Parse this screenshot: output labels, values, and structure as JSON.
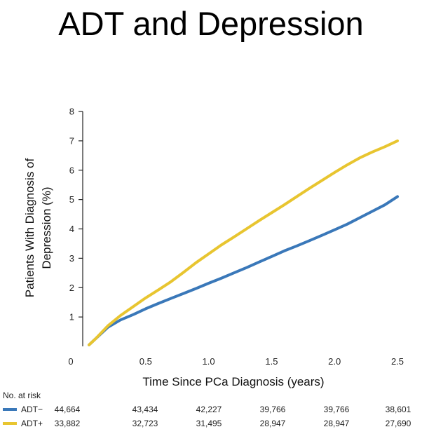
{
  "title": "ADT and Depression",
  "chart_data": {
    "type": "line",
    "xlabel": "Time Since PCa Diagnosis (years)",
    "ylabel": [
      "Patients With Diagnosis of",
      "Depression (%)"
    ],
    "xlim": [
      0,
      2.5
    ],
    "ylim": [
      0,
      8
    ],
    "x_ticks": [
      0,
      0.5,
      1.0,
      1.5,
      2.0,
      2.5
    ],
    "x_tick_labels": [
      "0",
      "0.5",
      "1.0",
      "1.5",
      "2.0",
      "2.5"
    ],
    "y_ticks": [
      1,
      2,
      3,
      4,
      5,
      6,
      7,
      8
    ],
    "y_tick_labels": [
      "1",
      "2",
      "3",
      "4",
      "5",
      "6",
      "7",
      "8"
    ],
    "grid": false,
    "series": [
      {
        "name": "ADT−",
        "color": "#3a78b9",
        "x": [
          0.05,
          0.1,
          0.2,
          0.3,
          0.4,
          0.5,
          0.6,
          0.7,
          0.8,
          0.9,
          1.0,
          1.1,
          1.2,
          1.3,
          1.4,
          1.5,
          1.6,
          1.7,
          1.8,
          1.9,
          2.0,
          2.1,
          2.2,
          2.3,
          2.4,
          2.5
        ],
        "y": [
          0.05,
          0.25,
          0.65,
          0.9,
          1.08,
          1.28,
          1.46,
          1.63,
          1.8,
          1.97,
          2.15,
          2.32,
          2.5,
          2.68,
          2.87,
          3.06,
          3.25,
          3.42,
          3.6,
          3.78,
          3.97,
          4.16,
          4.38,
          4.6,
          4.82,
          5.1
        ]
      },
      {
        "name": "ADT+",
        "color": "#e8c530",
        "x": [
          0.05,
          0.1,
          0.2,
          0.3,
          0.4,
          0.5,
          0.6,
          0.7,
          0.8,
          0.9,
          1.0,
          1.1,
          1.2,
          1.3,
          1.4,
          1.5,
          1.6,
          1.7,
          1.8,
          1.9,
          2.0,
          2.1,
          2.2,
          2.3,
          2.4,
          2.5
        ],
        "y": [
          0.05,
          0.25,
          0.7,
          1.05,
          1.35,
          1.65,
          1.92,
          2.2,
          2.52,
          2.85,
          3.15,
          3.45,
          3.72,
          4.0,
          4.28,
          4.55,
          4.82,
          5.1,
          5.38,
          5.65,
          5.92,
          6.18,
          6.42,
          6.62,
          6.8,
          7.0
        ]
      }
    ],
    "at_risk": {
      "header": "No. at risk",
      "rows": [
        {
          "label": "ADT−",
          "color": "#3a78b9",
          "values": [
            "44,664",
            "43,434",
            "42,227",
            "39,766",
            "39,766",
            "38,601"
          ]
        },
        {
          "label": "ADT+",
          "color": "#e8c530",
          "values": [
            "33,882",
            "32,723",
            "31,495",
            "28,947",
            "28,947",
            "27,690"
          ]
        }
      ]
    }
  }
}
